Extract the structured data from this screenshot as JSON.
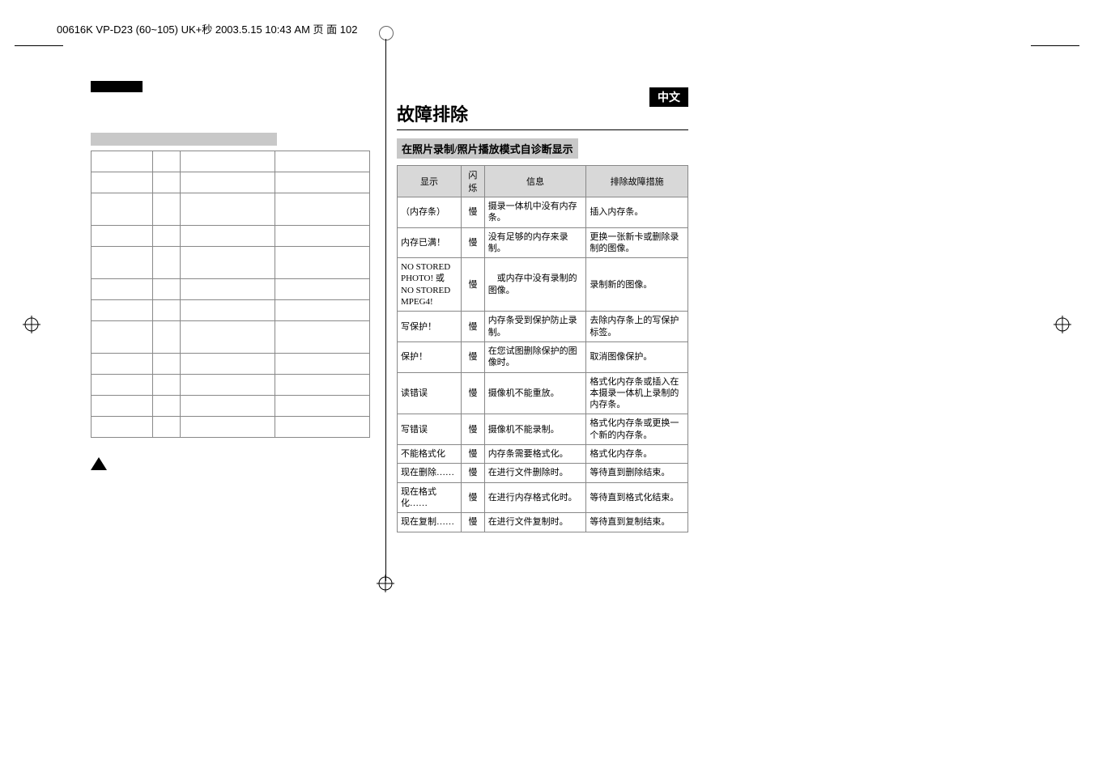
{
  "header": {
    "text": "00616K VP-D23 (60~105) UK+秒  2003.5.15 10:43 AM  页 面 102"
  },
  "right_page": {
    "lang_tag": "中文",
    "title": "故障排除",
    "section_heading": "在照片录制/照片播放模式自诊断显示",
    "table": {
      "headers": [
        "显示",
        "闪烁",
        "信息",
        "排除故障措施"
      ],
      "rows": [
        [
          "（内存条）",
          "慢",
          "摄录一体机中没有内存条。",
          "插入内存条。"
        ],
        [
          "内存已满！",
          "慢",
          "没有足够的内存来录制。",
          "更换一张新卡或删除录制的图像。"
        ],
        [
          "NO STORED PHOTO! 或 NO STORED MPEG4!",
          "慢",
          "　或内存中没有录制的图像。",
          "录制新的图像。"
        ],
        [
          "写保护！",
          "慢",
          "内存条受到保护防止录制。",
          "去除内存条上的写保护标签。"
        ],
        [
          "保护！",
          "慢",
          "在您试图删除保护的图像时。",
          "取消图像保护。"
        ],
        [
          "读错误",
          "慢",
          "摄像机不能重放。",
          "格式化内存条或插入在本摄录一体机上录制的内存条。"
        ],
        [
          "写错误",
          "慢",
          "摄像机不能录制。",
          "格式化内存条或更换一个新的内存条。"
        ],
        [
          "不能格式化",
          "慢",
          "内存条需要格式化。",
          "格式化内存条。"
        ],
        [
          "现在删除……",
          "慢",
          "在进行文件删除时。",
          "等待直到删除结束。"
        ],
        [
          "现在格式化……",
          "慢",
          "在进行内存格式化时。",
          "等待直到格式化结束。"
        ],
        [
          "现在复制……",
          "慢",
          "在进行文件复制时。",
          "等待直到复制结束。"
        ]
      ]
    }
  },
  "left_page": {
    "empty_rows": [
      [
        26,
        26,
        26,
        26
      ],
      [
        26
      ],
      [
        40
      ],
      [
        26
      ],
      [
        40
      ],
      [
        26
      ],
      [
        26
      ],
      [
        40
      ],
      [
        26
      ],
      [
        26
      ],
      [
        26
      ],
      [
        26
      ]
    ]
  },
  "colors": {
    "grey_header": "#d8d8d8",
    "grey_bar": "#c8c8c8",
    "border": "#888888",
    "black": "#000000",
    "white": "#ffffff"
  }
}
